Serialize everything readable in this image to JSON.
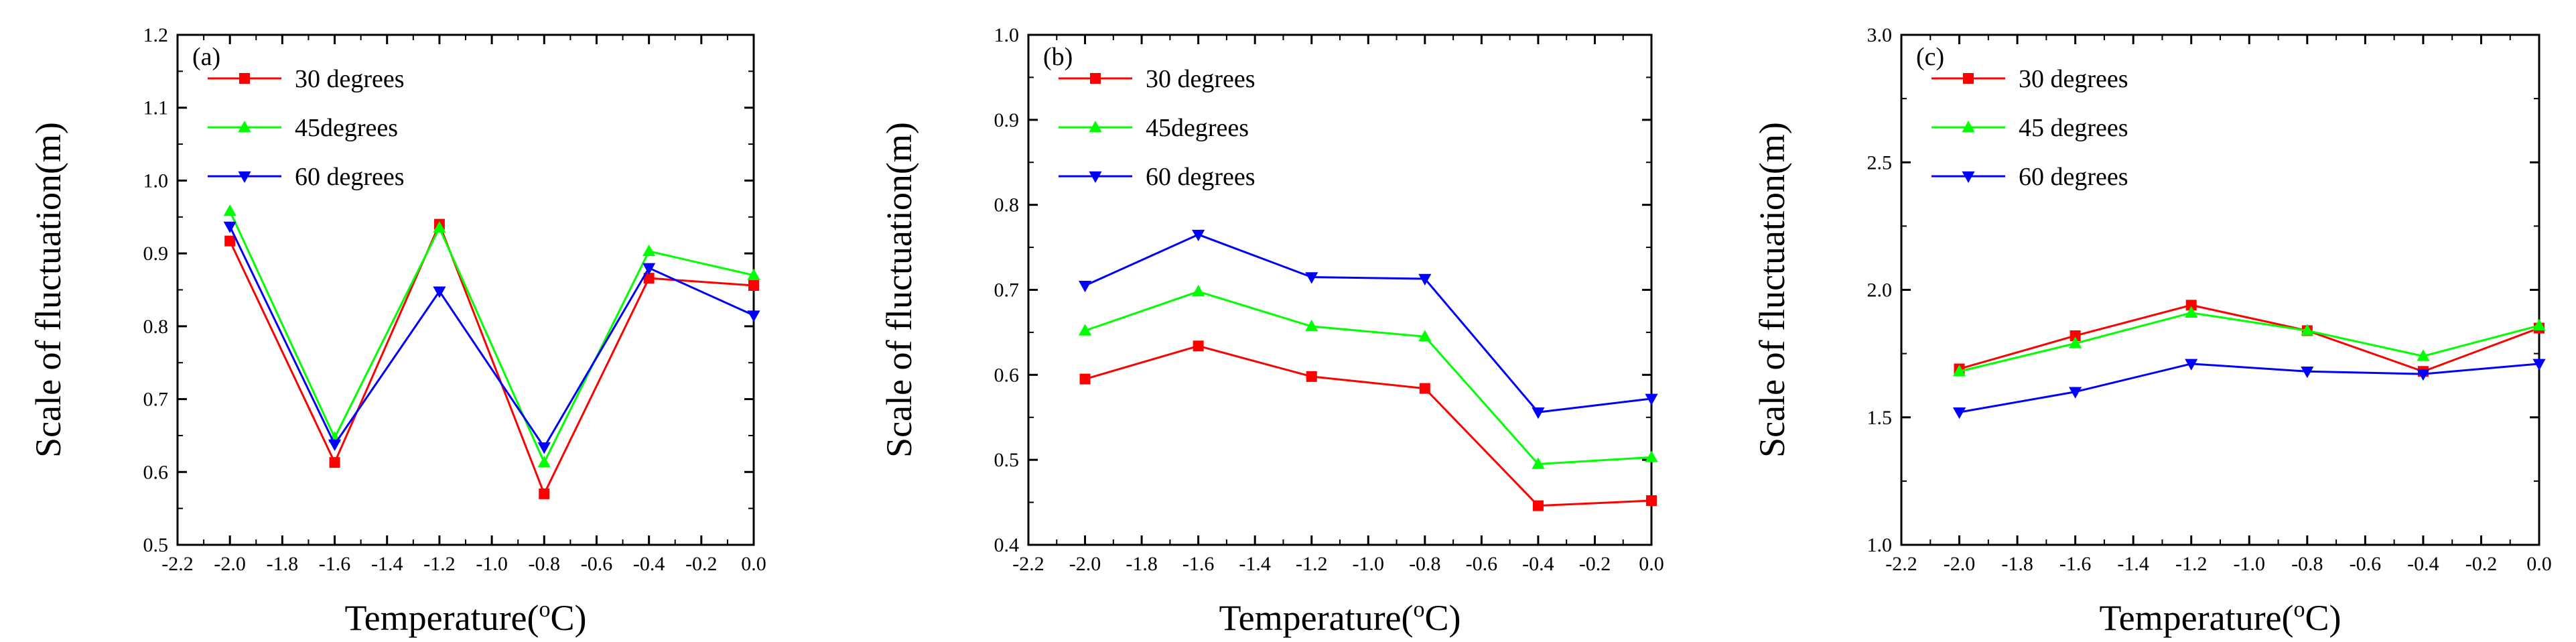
{
  "chart_data": [
    {
      "type": "line",
      "panel_label": "(a)",
      "xlabel": "Temperature(",
      "xlabel_unit_sup": "o",
      "xlabel_unit": "C)",
      "ylabel": "Scale of fluctuation(m)",
      "xlim": [
        -2.2,
        0.0
      ],
      "ylim": [
        0.5,
        1.2
      ],
      "xticks": [
        "-2.2",
        "-2.0",
        "-1.8",
        "-1.6",
        "-1.4",
        "-1.2",
        "-1.0",
        "-0.8",
        "-0.6",
        "-0.4",
        "-0.2",
        "0.0"
      ],
      "yticks": [
        "0.5",
        "0.6",
        "0.7",
        "0.8",
        "0.9",
        "1.0",
        "1.1",
        "1.2"
      ],
      "x": [
        -2.0,
        -1.6,
        -1.2,
        -0.8,
        -0.4,
        0.0
      ],
      "legend_position": "top-left",
      "series": [
        {
          "name": "30 degrees",
          "color": "#ff0000",
          "marker": "square",
          "values": [
            0.917,
            0.613,
            0.94,
            0.57,
            0.866,
            0.856
          ]
        },
        {
          "name": "45degrees",
          "color": "#00ff00",
          "marker": "triangle-up",
          "values": [
            0.958,
            0.647,
            0.935,
            0.613,
            0.903,
            0.87
          ]
        },
        {
          "name": "60 degrees",
          "color": "#0000ff",
          "marker": "triangle-down",
          "values": [
            0.937,
            0.638,
            0.848,
            0.634,
            0.88,
            0.815
          ]
        }
      ]
    },
    {
      "type": "line",
      "panel_label": "(b)",
      "xlabel": "Temperature(",
      "xlabel_unit_sup": "o",
      "xlabel_unit": "C)",
      "ylabel": "Scale of fluctuation(m)",
      "xlim": [
        -2.2,
        0.0
      ],
      "ylim": [
        0.4,
        1.0
      ],
      "xticks": [
        "-2.2",
        "-2.0",
        "-1.8",
        "-1.6",
        "-1.4",
        "-1.2",
        "-1.0",
        "-0.8",
        "-0.6",
        "-0.4",
        "-0.2",
        "0.0"
      ],
      "yticks": [
        "0.4",
        "0.5",
        "0.6",
        "0.7",
        "0.8",
        "0.9",
        "1.0"
      ],
      "x": [
        -2.0,
        -1.6,
        -1.2,
        -0.8,
        -0.4,
        0.0
      ],
      "legend_position": "top-left",
      "series": [
        {
          "name": "30 degrees",
          "color": "#ff0000",
          "marker": "square",
          "values": [
            0.595,
            0.634,
            0.598,
            0.584,
            0.446,
            0.452
          ]
        },
        {
          "name": "45degrees",
          "color": "#00ff00",
          "marker": "triangle-up",
          "values": [
            0.652,
            0.698,
            0.657,
            0.645,
            0.495,
            0.503
          ]
        },
        {
          "name": "60 degrees",
          "color": "#0000ff",
          "marker": "triangle-down",
          "values": [
            0.705,
            0.765,
            0.715,
            0.713,
            0.556,
            0.572
          ]
        }
      ]
    },
    {
      "type": "line",
      "panel_label": "(c)",
      "xlabel": "Temperature(",
      "xlabel_unit_sup": "o",
      "xlabel_unit": "C)",
      "ylabel": "Scale of fluctuation(m)",
      "xlim": [
        -2.2,
        0.0
      ],
      "ylim": [
        1.0,
        3.0
      ],
      "xticks": [
        "-2.2",
        "-2.0",
        "-1.8",
        "-1.6",
        "-1.4",
        "-1.2",
        "-1.0",
        "-0.8",
        "-0.6",
        "-0.4",
        "-0.2",
        "0.0"
      ],
      "yticks": [
        "1.0",
        "1.5",
        "2.0",
        "2.5",
        "3.0"
      ],
      "x": [
        -2.0,
        -1.6,
        -1.2,
        -0.8,
        -0.4,
        0.0
      ],
      "legend_position": "top-left",
      "series": [
        {
          "name": "30 degrees",
          "color": "#ff0000",
          "marker": "square",
          "values": [
            1.69,
            1.82,
            1.94,
            1.84,
            1.68,
            1.85
          ]
        },
        {
          "name": "45 degrees",
          "color": "#00ff00",
          "marker": "triangle-up",
          "values": [
            1.68,
            1.79,
            1.91,
            1.84,
            1.74,
            1.86
          ]
        },
        {
          "name": "60 degrees",
          "color": "#0000ff",
          "marker": "triangle-down",
          "values": [
            1.52,
            1.6,
            1.71,
            1.68,
            1.67,
            1.71
          ]
        }
      ]
    }
  ]
}
